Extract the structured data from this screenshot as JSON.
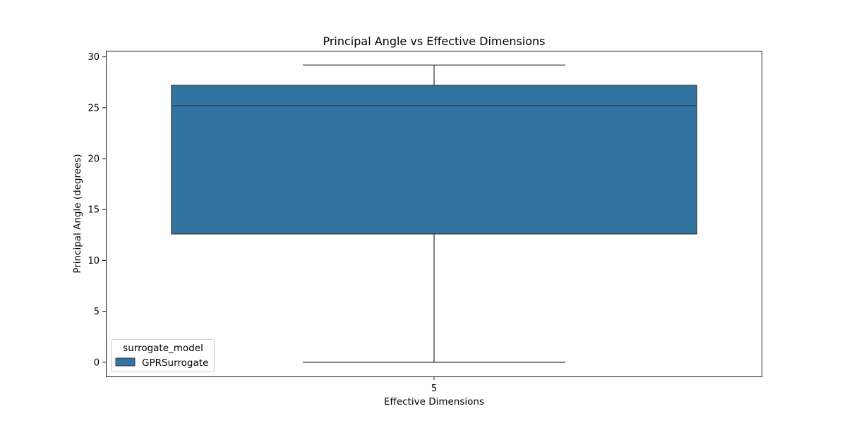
{
  "chart_data": {
    "type": "box",
    "title": "Principal Angle vs Effective Dimensions",
    "xlabel": "Effective Dimensions",
    "ylabel": "Principal Angle (degrees)",
    "categories": [
      "5"
    ],
    "ylim": [
      -1.4,
      30.6
    ],
    "yticks": [
      0,
      5,
      10,
      15,
      20,
      25,
      30
    ],
    "series": [
      {
        "name": "GPRSurrogate",
        "color": "#3274a1",
        "boxes": [
          {
            "category": "5",
            "whisker_low": 0.0,
            "q1": 12.6,
            "median": 25.2,
            "q3": 27.2,
            "whisker_high": 29.2
          }
        ]
      }
    ],
    "legend": {
      "title": "surrogate_model",
      "entries": [
        "GPRSurrogate"
      ],
      "position": "lower-left"
    },
    "grid": false
  }
}
